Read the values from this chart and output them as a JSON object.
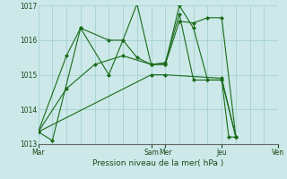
{
  "background_color": "#cce8e8",
  "grid_color": "#aad4d4",
  "line_color": "#1a6b1a",
  "marker_color": "#1a6b1a",
  "title": "Pression niveau de la mer( hPa )",
  "ylim": [
    1013,
    1017
  ],
  "yticks": [
    1013,
    1014,
    1015,
    1016,
    1017
  ],
  "xlim": [
    0,
    168
  ],
  "day_labels": [
    "Mar",
    "Sam",
    "Mer",
    "Jeu",
    "Ven"
  ],
  "day_positions": [
    0,
    96,
    108,
    156,
    204
  ],
  "vgrid_positions": [
    0,
    12,
    24,
    36,
    48,
    60,
    72,
    84,
    96,
    108,
    120,
    132,
    144,
    156,
    168,
    180,
    192,
    204,
    216
  ],
  "series": [
    {
      "x": [
        0,
        96,
        108,
        156,
        168
      ],
      "y": [
        1013.35,
        1015.0,
        1015.0,
        1014.9,
        1013.2
      ]
    },
    {
      "x": [
        0,
        24,
        48,
        72,
        96,
        108,
        120,
        132,
        144,
        156,
        168
      ],
      "y": [
        1013.35,
        1014.6,
        1015.3,
        1015.55,
        1015.3,
        1015.3,
        1016.55,
        1016.5,
        1016.65,
        1016.65,
        1013.2
      ]
    },
    {
      "x": [
        0,
        24,
        36,
        60,
        72,
        84,
        96,
        108,
        120,
        132,
        144,
        156,
        168
      ],
      "y": [
        1013.35,
        1015.55,
        1016.35,
        1016.0,
        1016.0,
        1015.5,
        1015.3,
        1015.35,
        1016.75,
        1014.85,
        1014.85,
        1014.85,
        1013.2
      ]
    },
    {
      "x": [
        0,
        12,
        36,
        60,
        72,
        84,
        96,
        108,
        120,
        132,
        144,
        156,
        162,
        168
      ],
      "y": [
        1013.35,
        1013.1,
        1016.35,
        1015.0,
        1016.0,
        1017.05,
        1015.3,
        1015.3,
        1017.0,
        1016.35,
        1014.85,
        1014.85,
        1013.2,
        1013.2
      ]
    }
  ]
}
